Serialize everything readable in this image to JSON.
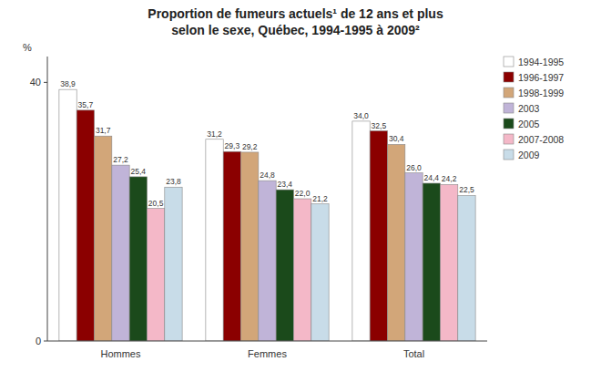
{
  "chart_data": {
    "type": "bar",
    "title": "Proportion de fumeurs actuels¹ de 12 ans et plus\nselon le sexe, Québec, 1994-1995 à 2009²",
    "categories": [
      "Hommes",
      "Femmes",
      "Total"
    ],
    "series": [
      {
        "name": "1994-1995",
        "color": "#FFFFFF",
        "values": [
          38.9,
          31.2,
          34.0
        ],
        "value_labels": [
          "38,9",
          "31,2",
          "34,0"
        ]
      },
      {
        "name": "1996-1997",
        "color": "#8B0000",
        "values": [
          35.7,
          29.3,
          32.5
        ],
        "value_labels": [
          "35,7",
          "29,3",
          "32,5"
        ]
      },
      {
        "name": "1998-1999",
        "color": "#D2A679",
        "values": [
          31.7,
          29.2,
          30.4
        ],
        "value_labels": [
          "31,7",
          "29,2",
          "30,4"
        ]
      },
      {
        "name": "2003",
        "color": "#C0B4D8",
        "values": [
          27.2,
          24.8,
          26.0
        ],
        "value_labels": [
          "27,2",
          "24,8",
          "26,0"
        ]
      },
      {
        "name": "2005",
        "color": "#1B4A1B",
        "values": [
          25.4,
          23.4,
          24.4
        ],
        "value_labels": [
          "25,4",
          "23,4",
          "24,4"
        ]
      },
      {
        "name": "2007-2008",
        "color": "#F4B8C8",
        "values": [
          20.5,
          22.0,
          24.2
        ],
        "value_labels": [
          "20,5",
          "22,0",
          "24,2"
        ]
      },
      {
        "name": "2009",
        "color": "#C8DCE8",
        "values": [
          23.8,
          21.2,
          22.5
        ],
        "value_labels": [
          "23,8",
          "21,2",
          "22,5"
        ]
      }
    ],
    "ylabel": "%",
    "ylim": [
      0,
      44
    ],
    "yticks": [
      0,
      40
    ],
    "grid": false,
    "legend": "upper right",
    "data_labels": true
  }
}
